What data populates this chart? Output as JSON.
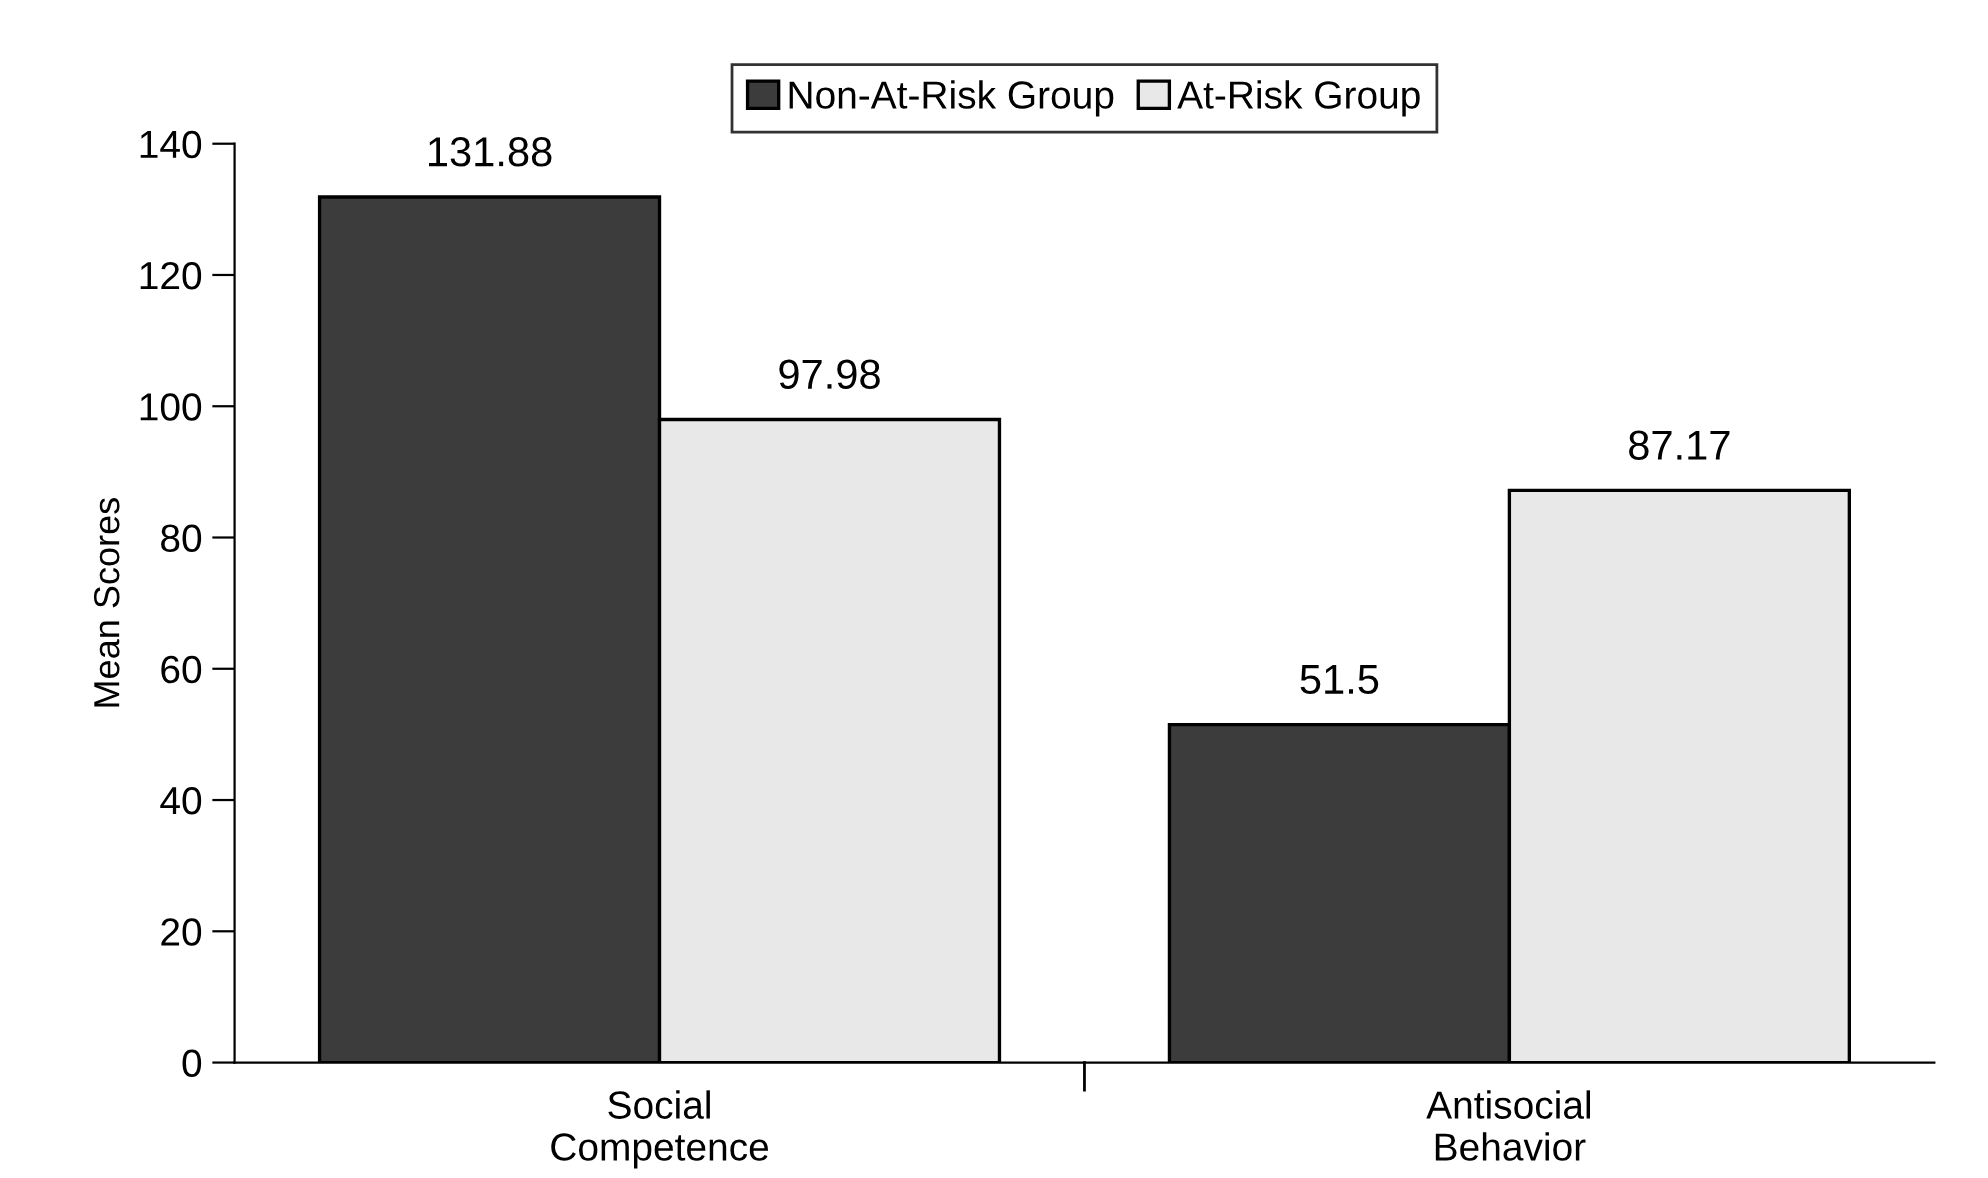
{
  "chart_data": {
    "type": "bar",
    "ylabel": "Mean Scores",
    "categories": [
      "Social\nCompetence",
      "Antisocial\nBehavior"
    ],
    "series": [
      {
        "name": "Non-At-Risk Group",
        "color": "#3c3c3c",
        "values": [
          131.88,
          51.5
        ]
      },
      {
        "name": "At-Risk Group",
        "color": "#e8e8e8",
        "values": [
          97.98,
          87.17
        ]
      }
    ],
    "ylim": [
      0,
      140
    ],
    "yticks": [
      0,
      20,
      40,
      60,
      80,
      100,
      120,
      140
    ],
    "data_labels": true,
    "grid": false,
    "legend": "top"
  }
}
